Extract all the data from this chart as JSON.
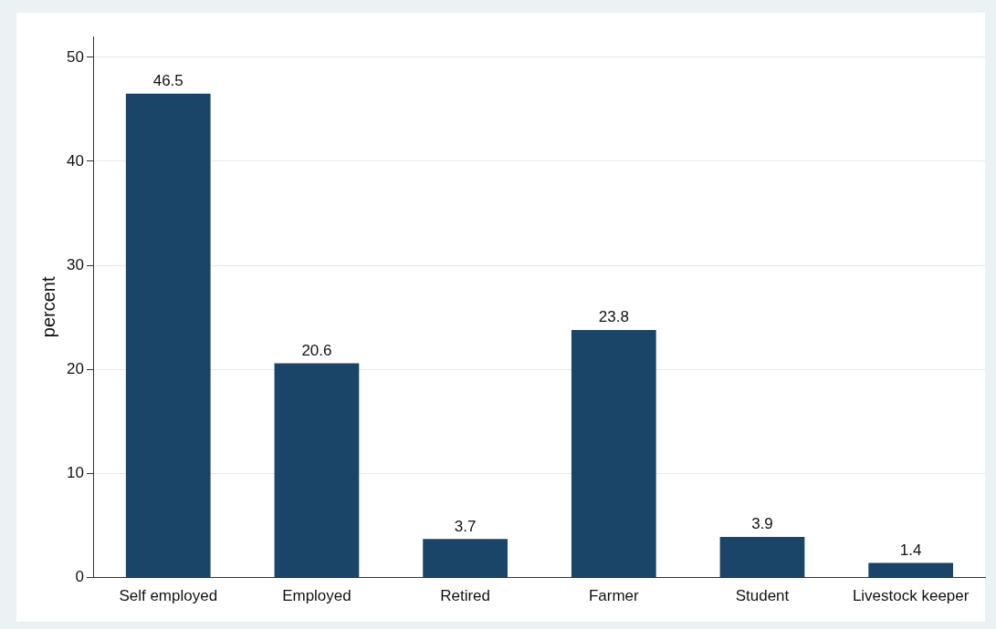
{
  "chart_data": {
    "type": "bar",
    "ylabel": "percent",
    "categories": [
      "Self employed",
      "Employed",
      "Retired",
      "Farmer",
      "Student",
      "Livestock keeper"
    ],
    "values": [
      46.5,
      20.6,
      3.7,
      23.8,
      3.9,
      1.4
    ],
    "color": "#1a4568",
    "ylim": [
      0,
      52
    ],
    "yticks": [
      0,
      10,
      20,
      30,
      40,
      50
    ],
    "grid": "y",
    "legend": false,
    "data_labels": true
  }
}
